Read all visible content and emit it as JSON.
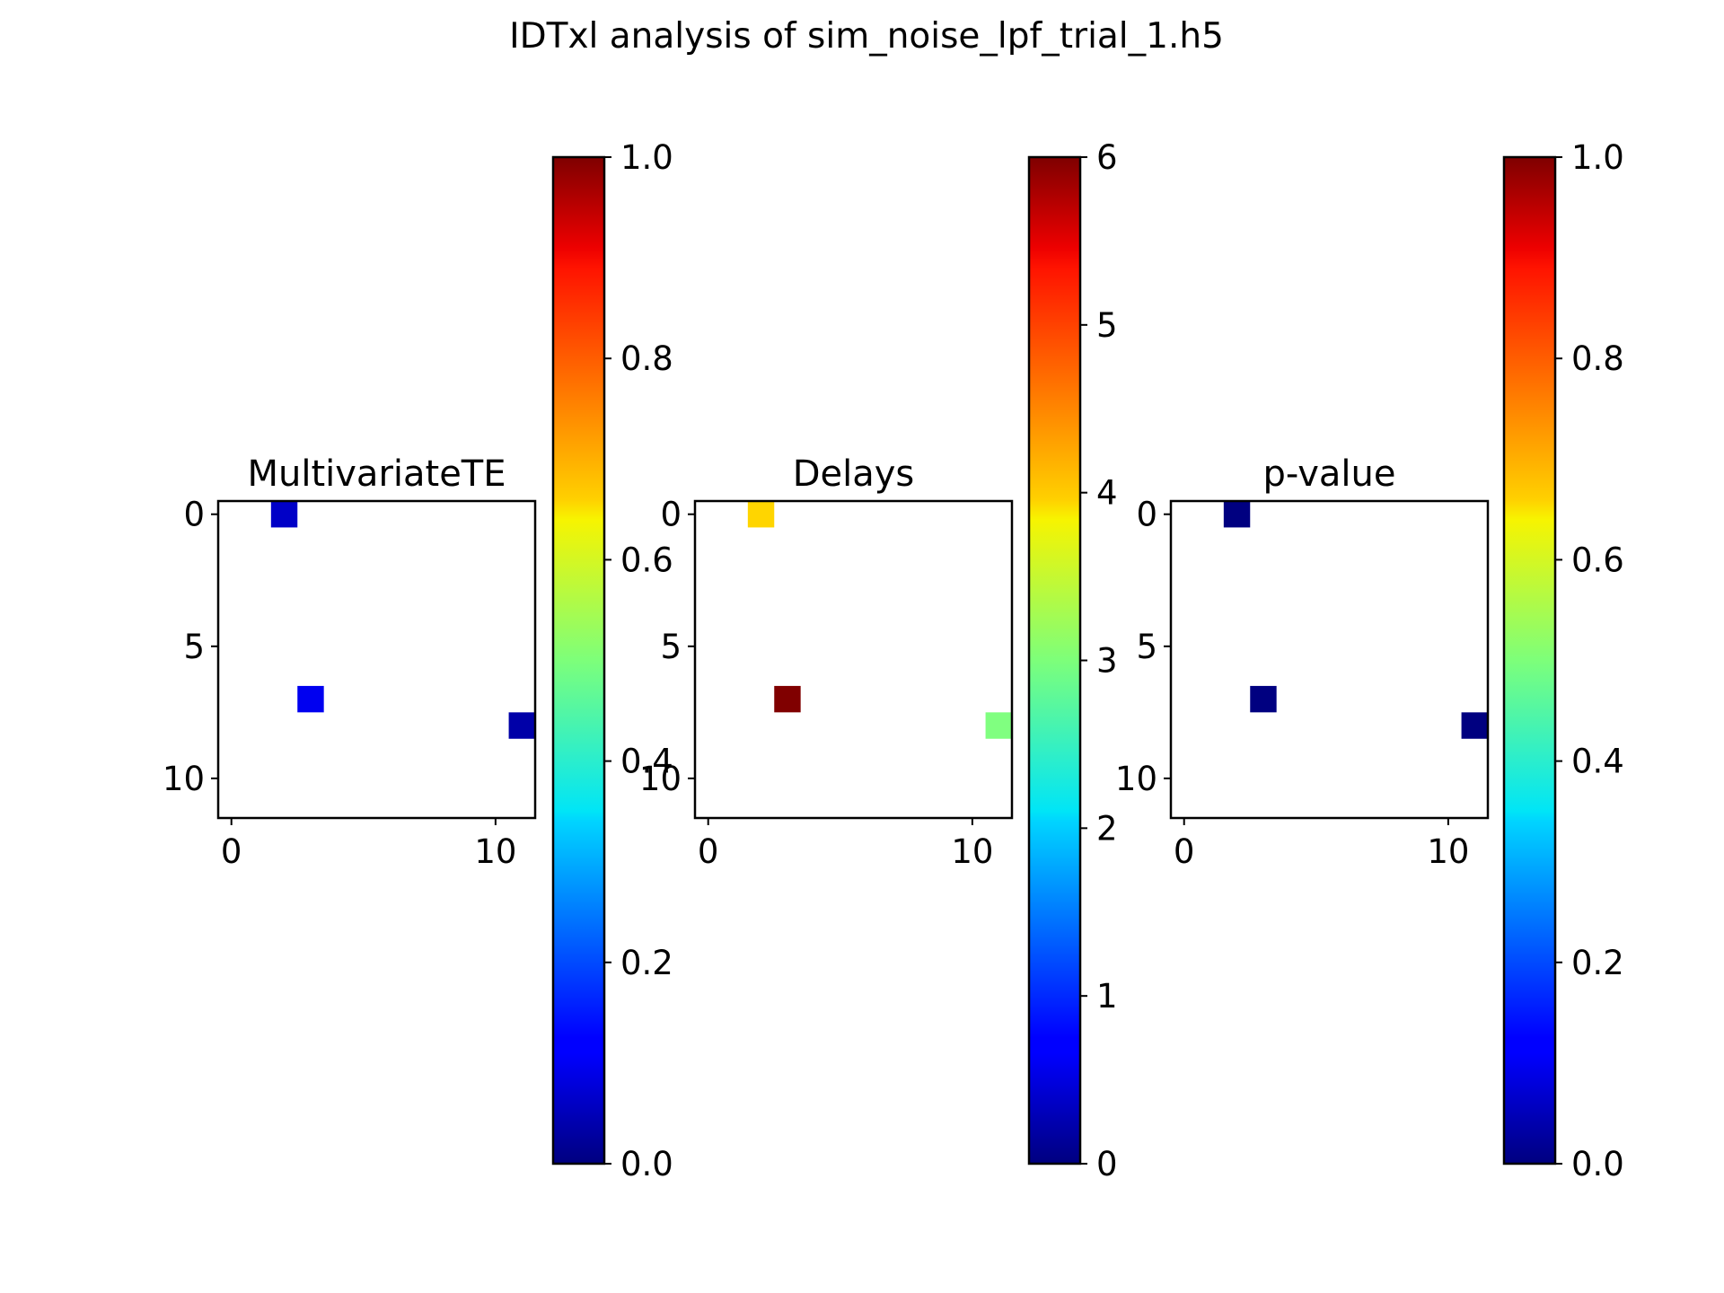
{
  "figure_title": "IDTxl analysis of sim_noise_lpf_trial_1.h5",
  "colormap": "jet",
  "chart_data": [
    {
      "type": "heatmap",
      "title": "MultivariateTE",
      "grid_size": [
        12,
        12
      ],
      "xlim": [
        -0.5,
        11.5
      ],
      "ylim": [
        11.5,
        -0.5
      ],
      "x_ticks": [
        0,
        10
      ],
      "y_ticks": [
        0,
        5,
        10
      ],
      "empty_color": "#ffffff",
      "cells": [
        {
          "row": 0,
          "col": 2,
          "value": 0.07
        },
        {
          "row": 7,
          "col": 3,
          "value": 0.11
        },
        {
          "row": 8,
          "col": 11,
          "value": 0.04
        }
      ],
      "colorbar": {
        "min": 0.0,
        "max": 1.0,
        "ticks": [
          "0.0",
          "0.2",
          "0.4",
          "0.6",
          "0.8",
          "1.0"
        ],
        "tick_values": [
          0.0,
          0.2,
          0.4,
          0.6,
          0.8,
          1.0
        ]
      }
    },
    {
      "type": "heatmap",
      "title": "Delays",
      "grid_size": [
        12,
        12
      ],
      "xlim": [
        -0.5,
        11.5
      ],
      "ylim": [
        11.5,
        -0.5
      ],
      "x_ticks": [
        0,
        10
      ],
      "y_ticks": [
        0,
        5,
        10
      ],
      "empty_color": "#ffffff",
      "cells": [
        {
          "row": 0,
          "col": 2,
          "value": 4
        },
        {
          "row": 7,
          "col": 3,
          "value": 6
        },
        {
          "row": 8,
          "col": 11,
          "value": 3
        }
      ],
      "colorbar": {
        "min": 0,
        "max": 6,
        "ticks": [
          "0",
          "1",
          "2",
          "3",
          "4",
          "5",
          "6"
        ],
        "tick_values": [
          0,
          1,
          2,
          3,
          4,
          5,
          6
        ]
      }
    },
    {
      "type": "heatmap",
      "title": "p-value",
      "grid_size": [
        12,
        12
      ],
      "xlim": [
        -0.5,
        11.5
      ],
      "ylim": [
        11.5,
        -0.5
      ],
      "x_ticks": [
        0,
        10
      ],
      "y_ticks": [
        0,
        5,
        10
      ],
      "empty_color": "#ffffff",
      "cells": [
        {
          "row": 0,
          "col": 2,
          "value": 0.0
        },
        {
          "row": 7,
          "col": 3,
          "value": 0.0
        },
        {
          "row": 8,
          "col": 11,
          "value": 0.0
        }
      ],
      "colorbar": {
        "min": 0.0,
        "max": 1.0,
        "ticks": [
          "0.0",
          "0.2",
          "0.4",
          "0.6",
          "0.8",
          "1.0"
        ],
        "tick_values": [
          0.0,
          0.2,
          0.4,
          0.6,
          0.8,
          1.0
        ]
      }
    }
  ]
}
